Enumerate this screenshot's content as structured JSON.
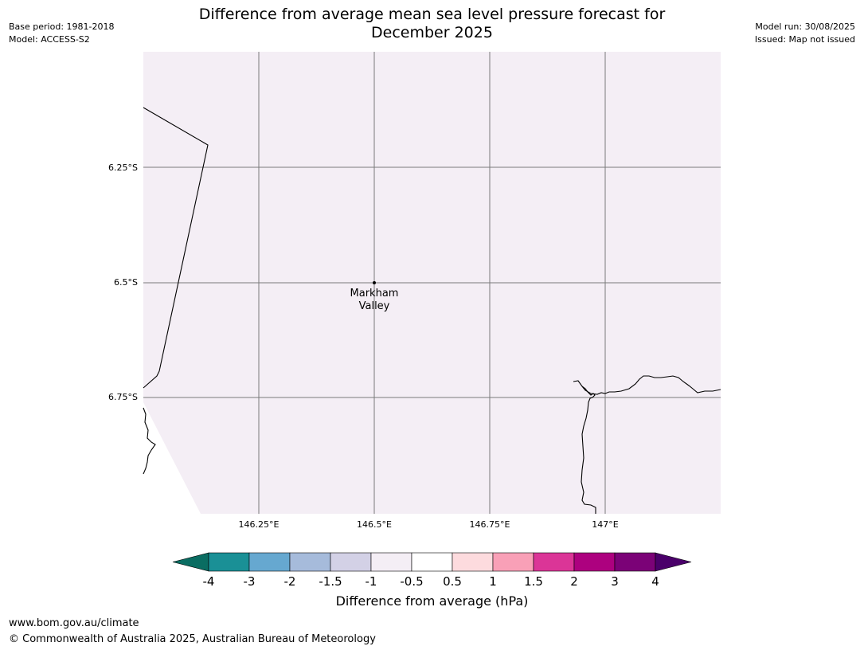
{
  "header": {
    "title_line1": "Difference from average mean sea level pressure forecast for",
    "title_line2": "December 2025",
    "base_period": "Base period: 1981-2018",
    "model": "Model: ACCESS-S2",
    "model_run": "Model run: 30/08/2025",
    "issued": "Issued: Map not issued"
  },
  "map": {
    "background_color": "#f4eef5",
    "lon_ticks": [
      "146.25°E",
      "146.5°E",
      "146.75°E",
      "147°E"
    ],
    "lat_ticks": [
      "6.25°S",
      "6.5°S",
      "6.75°S"
    ],
    "place": {
      "name_line1": "Markham",
      "name_line2": "Valley"
    }
  },
  "legend": {
    "label": "Difference from average (hPa)",
    "ticks": [
      "-4",
      "-3",
      "-2",
      "-1.5",
      "-1",
      "-0.5",
      "0.5",
      "1",
      "1.5",
      "2",
      "3",
      "4"
    ],
    "colors": [
      "#1a9096",
      "#66a8d0",
      "#a6bbdb",
      "#d3d1e6",
      "#f4eef5",
      "#ffffff",
      "#fddbde",
      "#f9a0b7",
      "#db3597",
      "#ad017f",
      "#7b0277"
    ],
    "under_color": "#0a6d62",
    "over_color": "#4a006a"
  },
  "footer": {
    "url": "www.bom.gov.au/climate",
    "copyright": "© Commonwealth of Australia 2025, Australian Bureau of Meteorology"
  }
}
